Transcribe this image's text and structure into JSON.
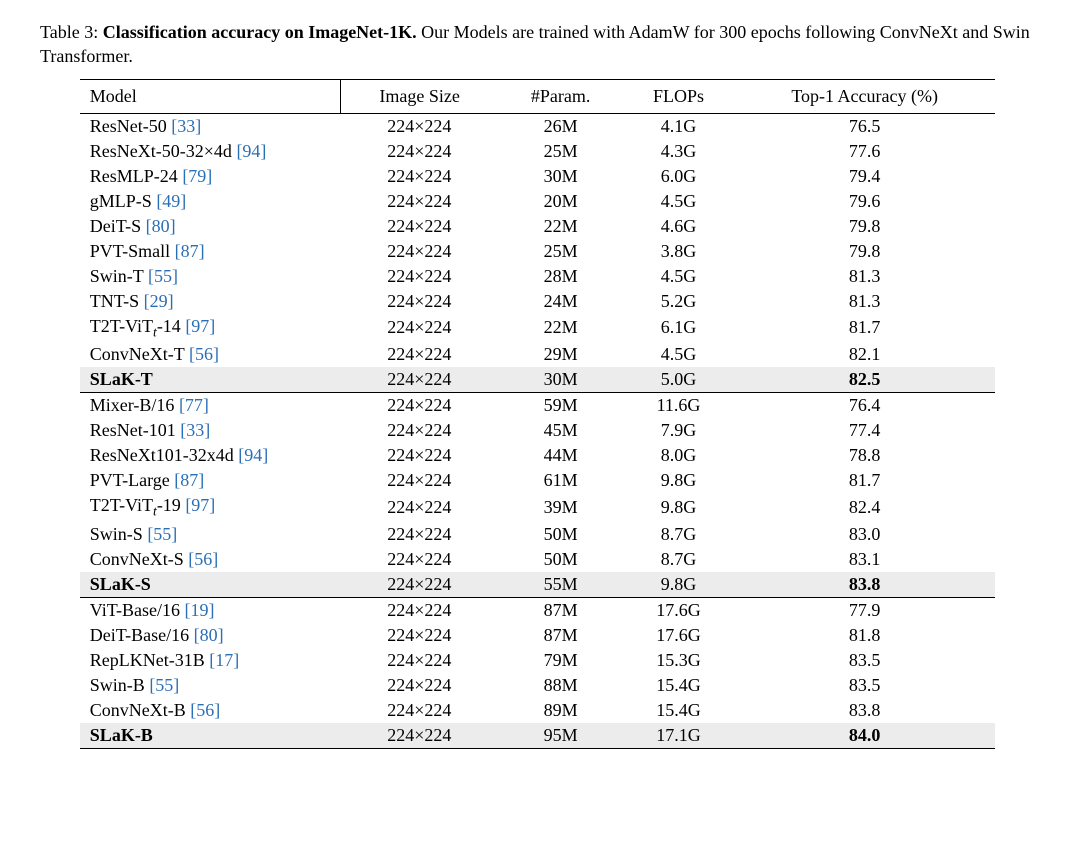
{
  "caption": {
    "label": "Table 3:",
    "title": "Classification accuracy on ImageNet-1K.",
    "rest": " Our Models are trained with AdamW for 300 epochs following ConvNeXt and Swin Transformer."
  },
  "table": {
    "type": "table",
    "columns": [
      "Model",
      "Image Size",
      "#Param.",
      "FLOPs",
      "Top-1 Accuracy (%)"
    ],
    "cite_color": "#2a6fb5",
    "background_color": "#ffffff",
    "highlight_bg": "#ececec",
    "groups": [
      {
        "rows": [
          {
            "model": "ResNet-50",
            "cite": "[33]",
            "size": "224×224",
            "param": "26M",
            "flops": "4.1G",
            "acc": "76.5"
          },
          {
            "model": "ResNeXt-50-32×4d",
            "cite": "[94]",
            "size": "224×224",
            "param": "25M",
            "flops": "4.3G",
            "acc": "77.6"
          },
          {
            "model": "ResMLP-24",
            "cite": "[79]",
            "size": "224×224",
            "param": "30M",
            "flops": "6.0G",
            "acc": "79.4"
          },
          {
            "model": "gMLP-S",
            "cite": "[49]",
            "size": "224×224",
            "param": "20M",
            "flops": "4.5G",
            "acc": "79.6"
          },
          {
            "model": "DeiT-S",
            "cite": "[80]",
            "size": "224×224",
            "param": "22M",
            "flops": "4.6G",
            "acc": "79.8"
          },
          {
            "model": "PVT-Small",
            "cite": "[87]",
            "size": "224×224",
            "param": "25M",
            "flops": "3.8G",
            "acc": "79.8"
          },
          {
            "model": "Swin-T",
            "cite": "[55]",
            "size": "224×224",
            "param": "28M",
            "flops": "4.5G",
            "acc": "81.3"
          },
          {
            "model": "TNT-S",
            "cite": "[29]",
            "size": "224×224",
            "param": "24M",
            "flops": "5.2G",
            "acc": "81.3"
          },
          {
            "model": "T2T-ViT",
            "sub": "t",
            "suffix": "-14",
            "cite": "[97]",
            "size": "224×224",
            "param": "22M",
            "flops": "6.1G",
            "acc": "81.7"
          },
          {
            "model": "ConvNeXt-T",
            "cite": "[56]",
            "size": "224×224",
            "param": "29M",
            "flops": "4.5G",
            "acc": "82.1"
          },
          {
            "model": "SLaK-T",
            "size": "224×224",
            "param": "30M",
            "flops": "5.0G",
            "acc": "82.5",
            "highlight": true
          }
        ]
      },
      {
        "rows": [
          {
            "model": "Mixer-B/16",
            "cite": "[77]",
            "size": "224×224",
            "param": "59M",
            "flops": "11.6G",
            "acc": "76.4"
          },
          {
            "model": "ResNet-101",
            "cite": "[33]",
            "size": "224×224",
            "param": "45M",
            "flops": "7.9G",
            "acc": "77.4"
          },
          {
            "model": "ResNeXt101-32x4d",
            "cite": "[94]",
            "size": "224×224",
            "param": "44M",
            "flops": "8.0G",
            "acc": "78.8"
          },
          {
            "model": "PVT-Large",
            "cite": "[87]",
            "size": "224×224",
            "param": "61M",
            "flops": "9.8G",
            "acc": "81.7"
          },
          {
            "model": "T2T-ViT",
            "sub": "t",
            "suffix": "-19",
            "cite": "[97]",
            "size": "224×224",
            "param": "39M",
            "flops": "9.8G",
            "acc": "82.4"
          },
          {
            "model": "Swin-S",
            "cite": "[55]",
            "size": "224×224",
            "param": "50M",
            "flops": "8.7G",
            "acc": "83.0"
          },
          {
            "model": "ConvNeXt-S",
            "cite": "[56]",
            "size": "224×224",
            "param": "50M",
            "flops": "8.7G",
            "acc": "83.1"
          },
          {
            "model": "SLaK-S",
            "size": "224×224",
            "param": "55M",
            "flops": "9.8G",
            "acc": "83.8",
            "highlight": true
          }
        ]
      },
      {
        "rows": [
          {
            "model": "ViT-Base/16",
            "cite": "[19]",
            "size": "224×224",
            "param": "87M",
            "flops": "17.6G",
            "acc": "77.9"
          },
          {
            "model": "DeiT-Base/16",
            "cite": "[80]",
            "size": "224×224",
            "param": "87M",
            "flops": "17.6G",
            "acc": "81.8"
          },
          {
            "model": "RepLKNet-31B",
            "cite": "[17]",
            "size": "224×224",
            "param": "79M",
            "flops": "15.3G",
            "acc": "83.5"
          },
          {
            "model": "Swin-B",
            "cite": "[55]",
            "size": "224×224",
            "param": "88M",
            "flops": "15.4G",
            "acc": "83.5"
          },
          {
            "model": "ConvNeXt-B",
            "cite": "[56]",
            "size": "224×224",
            "param": "89M",
            "flops": "15.4G",
            "acc": "83.8"
          },
          {
            "model": "SLaK-B",
            "size": "224×224",
            "param": "95M",
            "flops": "17.1G",
            "acc": "84.0",
            "highlight": true
          }
        ]
      }
    ]
  }
}
